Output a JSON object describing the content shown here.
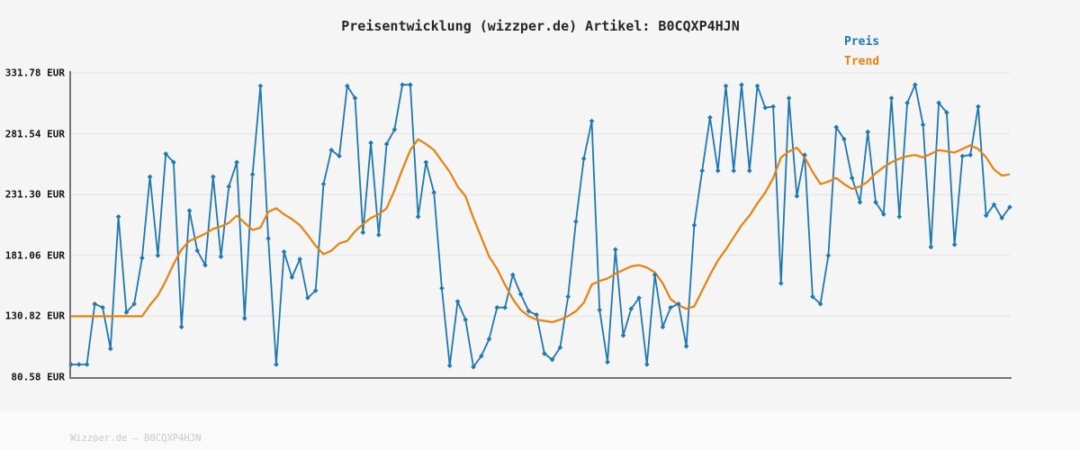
{
  "title": "Preisentwicklung (wizzper.de) Artikel: B0CQXP4HJN",
  "legend": {
    "preis_label": "Preis",
    "trend_label": "Trend"
  },
  "footer": {
    "text": "Wizzper.de – B0CQXP4HJN"
  },
  "colors": {
    "price_blue": "#1f77b4",
    "trend_orange": "#e8820e",
    "grid": "#e2e2e2",
    "spine": "#757575",
    "title_text": "#262626",
    "tick_text": "#111111",
    "footer_text": "#c9c9c9",
    "background": "#f5f5f5"
  },
  "chart_data": {
    "type": "line",
    "title": "Preisentwicklung (wizzper.de) Artikel: B0CQXP4HJN",
    "xlabel": "",
    "ylabel": "",
    "ylim": [
      80.58,
      331.78
    ],
    "yticks": [
      331.78,
      281.54,
      231.3,
      181.06,
      130.82,
      80.58
    ],
    "ytick_labels": [
      "331.78 EUR",
      "281.54 EUR",
      "231.30 EUR",
      "181.06 EUR",
      "130.82 EUR",
      "80.58 EUR"
    ],
    "grid": "horizontal",
    "legend_position": "top-right",
    "x_axis": "time (unlabeled)",
    "series": [
      {
        "name": "Preis",
        "color": "#1f77b4",
        "marker": "diamond",
        "values": [
          91,
          91,
          91,
          141,
          138,
          104,
          213,
          134,
          141,
          179,
          246,
          181,
          265,
          258,
          122,
          218,
          185,
          173,
          246,
          180,
          238,
          258,
          129,
          248,
          321,
          195,
          91,
          184,
          163,
          178,
          146,
          152,
          240,
          268,
          263,
          321,
          311,
          200,
          274,
          198,
          273,
          285,
          322,
          322,
          213,
          258,
          233,
          154,
          90,
          143,
          128,
          89,
          98,
          112,
          138,
          138,
          165,
          149,
          135,
          132,
          100,
          95,
          105,
          147,
          209,
          261,
          292,
          136,
          93,
          186,
          115,
          137,
          146,
          91,
          165,
          122,
          138,
          141,
          106,
          206,
          251,
          295,
          251,
          321,
          251,
          322,
          251,
          321,
          303,
          304,
          158,
          311,
          230,
          264,
          147,
          141,
          181,
          287,
          277,
          245,
          225,
          283,
          225,
          215,
          311,
          213,
          307,
          322,
          289,
          188,
          307,
          299,
          190,
          263,
          264,
          304,
          214,
          223,
          212,
          221
        ]
      },
      {
        "name": "Trend",
        "color": "#e8820e",
        "marker": "none",
        "values": [
          130.82,
          130.82,
          130.82,
          130.82,
          130.82,
          130.82,
          130.82,
          130.82,
          130.82,
          130.82,
          140,
          148,
          160,
          174,
          186,
          193,
          196,
          199,
          203,
          205,
          208,
          214,
          208,
          202,
          204,
          217,
          220,
          215,
          211,
          206,
          198,
          189,
          182,
          185,
          191,
          193,
          201,
          207,
          212,
          215,
          220,
          235,
          252,
          268,
          277,
          273,
          268,
          259,
          250,
          238,
          230,
          212,
          196,
          180,
          170,
          157,
          145,
          136,
          131,
          128,
          127,
          126,
          128,
          131,
          135,
          142,
          157,
          160,
          162,
          166,
          169,
          172,
          173,
          171,
          167,
          158,
          145,
          140,
          137,
          139,
          152,
          165,
          177,
          186,
          196,
          206,
          214,
          224,
          233,
          245,
          262,
          267,
          270,
          262,
          250,
          240,
          242,
          245,
          240,
          236,
          238,
          242,
          249,
          254,
          258,
          261,
          263,
          264,
          262,
          265,
          268,
          267,
          266,
          269,
          272,
          269,
          262,
          252,
          247,
          248
        ]
      }
    ]
  }
}
